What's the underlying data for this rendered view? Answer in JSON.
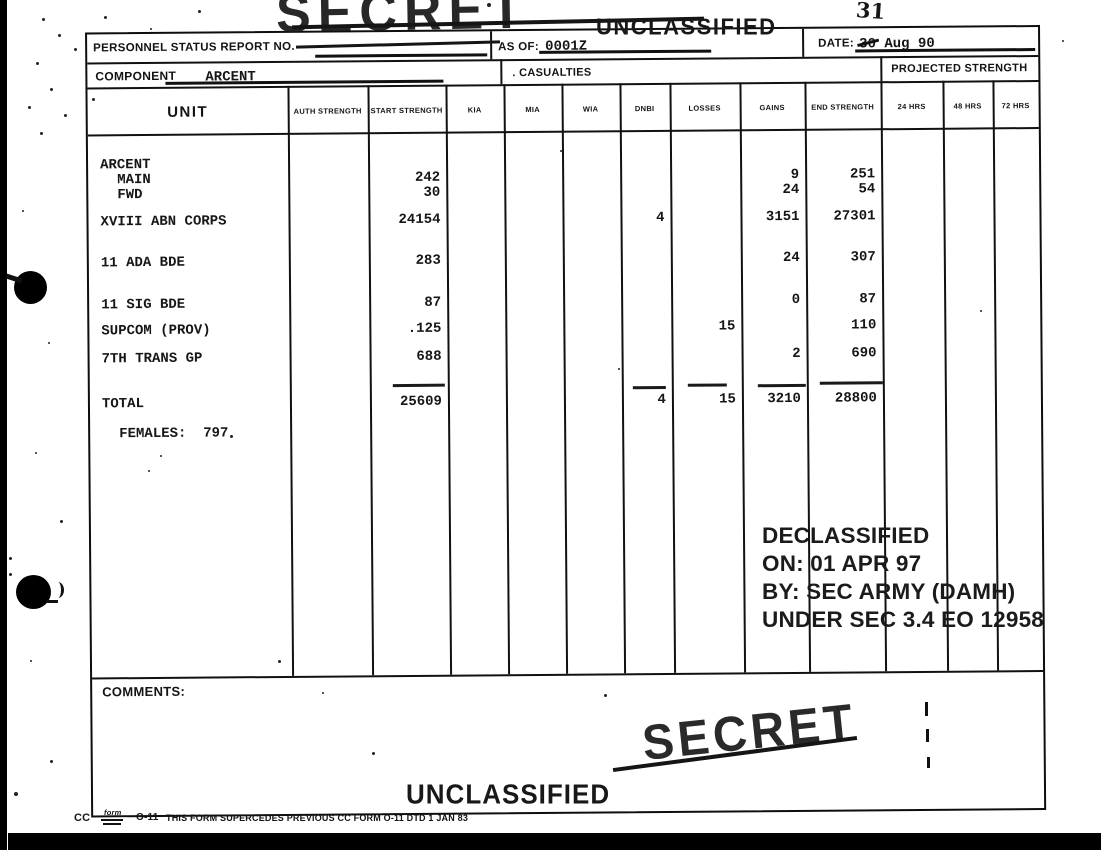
{
  "stamps": {
    "top_secret": "SECRET",
    "top_unclassified": "UNCLASSIFIED",
    "bottom_secret": "SECRET",
    "bottom_unclassified": "UNCLASSIFIED",
    "handwritten_page_number": "31"
  },
  "header": {
    "report_no_label": "PERSONNEL STATUS REPORT NO.",
    "as_of_label": "AS OF:",
    "as_of_value": "0001Z",
    "date_label": "DATE:",
    "date_value": "30 Aug 90",
    "component_label": "COMPONENT",
    "component_value": "ARCENT",
    "casualties_label": ". CASUALTIES",
    "projected_strength_label": "PROJECTED STRENGTH"
  },
  "table": {
    "columns": [
      "UNIT",
      "AUTH STRENGTH",
      "START STRENGTH",
      "KIA",
      "MIA",
      "WIA",
      "DNBI",
      "LOSSES",
      "GAINS",
      "END STRENGTH",
      "24 HRS",
      "48 HRS",
      "72 HRS"
    ],
    "rows": [
      {
        "unit": "ARCENT",
        "indent": 0
      },
      {
        "unit": "MAIN",
        "indent": 1,
        "start": "242",
        "gains": "9",
        "end": "251"
      },
      {
        "unit": "FWD",
        "indent": 1,
        "start": "30",
        "gains": "24",
        "end": "54"
      },
      {
        "unit": "XVIII ABN CORPS",
        "indent": 0,
        "start": "24154",
        "dnbi": "4",
        "gains": "3151",
        "end": "27301"
      },
      {
        "unit": "11 ADA BDE",
        "indent": 0,
        "start": "283",
        "gains": "24",
        "end": "307"
      },
      {
        "unit": "11 SIG BDE",
        "indent": 0,
        "start": "87",
        "gains": "0",
        "end": "87"
      },
      {
        "unit": "SUPCOM (PROV)",
        "indent": 0,
        "start": ".125",
        "losses": "15",
        "end": "110"
      },
      {
        "unit": "7TH TRANS GP",
        "indent": 0,
        "start": "688",
        "gains": "2",
        "end": "690"
      },
      {
        "unit": "TOTAL",
        "indent": 0,
        "start": "25609",
        "dnbi": "4",
        "losses": "15",
        "gains": "3210",
        "end": "28800"
      },
      {
        "unit": "FEMALES:  797",
        "indent": 1
      }
    ]
  },
  "declassified": {
    "lines": [
      "DECLASSIFIED",
      "ON: 01 APR 97",
      "BY: SEC ARMY (DAMH)",
      "UNDER SEC 3.4 EO 12958"
    ]
  },
  "comments": {
    "label": "COMMENTS:"
  },
  "footer": {
    "cc_label": "CC",
    "form_label": "form",
    "form_number": "O-11",
    "supersede_text": "THIS FORM SUPERCEDES PREVIOUS CC FORM O-11 DTD 1 JAN 83"
  }
}
